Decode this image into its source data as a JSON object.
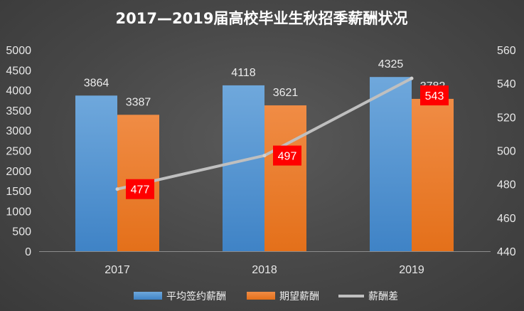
{
  "chart_data": {
    "type": "bar",
    "title": "2017—2019届高校毕业生秋招季薪酬状况",
    "categories": [
      "2017",
      "2018",
      "2019"
    ],
    "series": [
      {
        "name": "平均签约薪酬",
        "type": "bar",
        "axis": "left",
        "color": "#5b9bd5",
        "values": [
          3864,
          4118,
          4325
        ]
      },
      {
        "name": "期望薪酬",
        "type": "bar",
        "axis": "left",
        "color": "#ed7d31",
        "values": [
          3387,
          3621,
          3782
        ]
      },
      {
        "name": "薪酬差",
        "type": "line",
        "axis": "right",
        "color": "#a5a5a5",
        "values": [
          477,
          497,
          543
        ]
      }
    ],
    "y_left": {
      "min": 0,
      "max": 5000,
      "step": 500
    },
    "y_right": {
      "min": 440,
      "max": 560,
      "step": 20
    },
    "grid": false,
    "legend_position": "bottom",
    "diff_label_color": "#ff0000"
  }
}
